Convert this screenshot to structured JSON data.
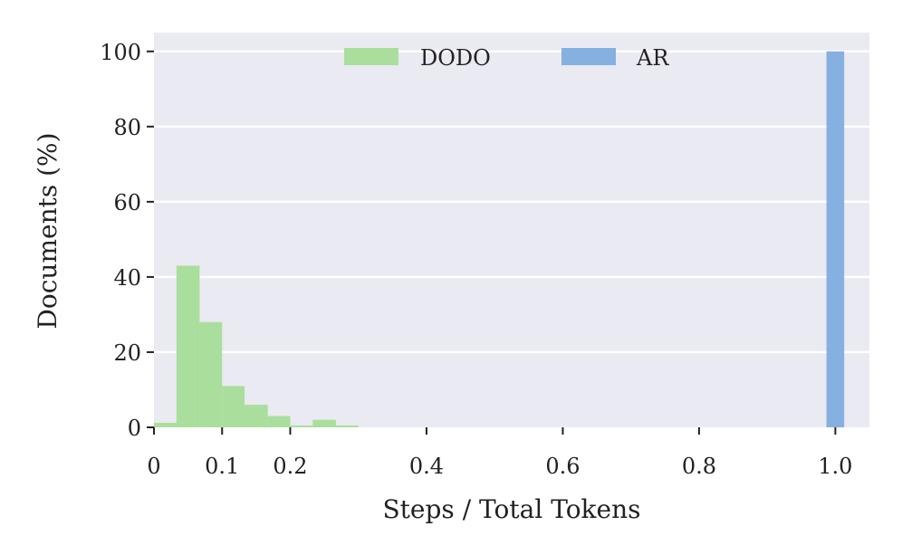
{
  "chart_data": {
    "type": "bar",
    "subtype": "histogram",
    "title": "",
    "xlabel": "Steps / Total Tokens",
    "ylabel": "Documents (%)",
    "xlim": [
      0,
      1.05
    ],
    "ylim": [
      0,
      105
    ],
    "grid": "horizontal",
    "legend_placement": "top-center",
    "background_color": "#eaeaf2",
    "x_ticks": [
      {
        "value": 0,
        "label": "0"
      },
      {
        "value": 0.1,
        "label": "0.1"
      },
      {
        "value": 0.2,
        "label": "0.2"
      },
      {
        "value": 0.4,
        "label": "0.4"
      },
      {
        "value": 0.6,
        "label": "0.6"
      },
      {
        "value": 0.8,
        "label": "0.8"
      },
      {
        "value": 1.0,
        "label": "1.0"
      }
    ],
    "y_ticks": [
      {
        "value": 0,
        "label": "0"
      },
      {
        "value": 20,
        "label": "20"
      },
      {
        "value": 40,
        "label": "40"
      },
      {
        "value": 60,
        "label": "60"
      },
      {
        "value": 80,
        "label": "80"
      },
      {
        "value": 100,
        "label": "100"
      }
    ],
    "series": [
      {
        "name": "DODO",
        "color": "#aade9c",
        "bins": [
          {
            "x0": 0.0,
            "x1": 0.033,
            "value": 1.2
          },
          {
            "x0": 0.033,
            "x1": 0.067,
            "value": 43.0
          },
          {
            "x0": 0.067,
            "x1": 0.1,
            "value": 28.0
          },
          {
            "x0": 0.1,
            "x1": 0.133,
            "value": 11.0
          },
          {
            "x0": 0.133,
            "x1": 0.167,
            "value": 6.0
          },
          {
            "x0": 0.167,
            "x1": 0.2,
            "value": 3.0
          },
          {
            "x0": 0.2,
            "x1": 0.233,
            "value": 0.5
          },
          {
            "x0": 0.233,
            "x1": 0.267,
            "value": 2.0
          },
          {
            "x0": 0.267,
            "x1": 0.3,
            "value": 0.5
          }
        ]
      },
      {
        "name": "AR",
        "color": "#86b0e0",
        "bins": [
          {
            "x0": 0.987,
            "x1": 1.013,
            "value": 100.0
          }
        ]
      }
    ]
  }
}
